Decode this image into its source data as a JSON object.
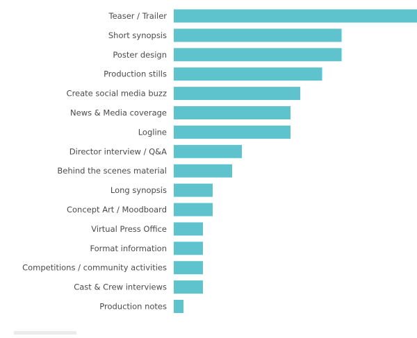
{
  "chart_data": {
    "type": "bar",
    "orientation": "horizontal",
    "title": "",
    "xlabel": "",
    "ylabel": "",
    "categories": [
      "Teaser / Trailer",
      "Short synopsis",
      "Poster design",
      "Production stills",
      "Create social media buzz",
      "News & Media coverage",
      "Logline",
      "Director interview / Q&A",
      "Behind the scenes material",
      "Long synopsis",
      "Concept Art / Moodboard",
      "Virtual Press Office",
      "Format information",
      "Competitions / community activities",
      "Cast & Crew interviews",
      "Production notes"
    ],
    "values": [
      100,
      69,
      69,
      61,
      52,
      48,
      48,
      28,
      24,
      16,
      16,
      12,
      12,
      12,
      12,
      4
    ],
    "xlim": [
      0,
      100
    ],
    "grid": false,
    "legend": "none",
    "bar_color": "#5ec3cc",
    "label_color": "#4a4a4a"
  }
}
